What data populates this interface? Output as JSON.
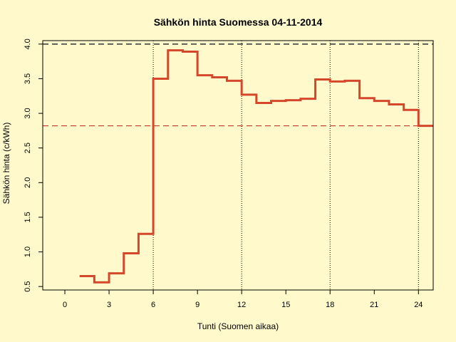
{
  "chart_data": {
    "type": "line",
    "style": "step",
    "title": "Sähkön hinta Suomessa 04-11-2014",
    "xlabel": "Tunti (Suomen aikaa)",
    "ylabel": "Sähkön hinta (c/kWh)",
    "xlim": [
      -1.5,
      25
    ],
    "ylim": [
      0.45,
      4.05
    ],
    "xticks": [
      0,
      3,
      6,
      9,
      12,
      15,
      18,
      21,
      24
    ],
    "yticks": [
      0.5,
      1.0,
      1.5,
      2.0,
      2.5,
      3.0,
      3.5,
      4.0
    ],
    "ytick_labels": [
      "0.5",
      "1.0",
      "1.5",
      "2.0",
      "2.5",
      "3.0",
      "3.5",
      "4.0"
    ],
    "vertical_gridlines_x": [
      6,
      12,
      18,
      24
    ],
    "reference_lines": [
      {
        "y": 4.0,
        "color": "#333333"
      },
      {
        "y": 2.82,
        "color": "#c0392b"
      }
    ],
    "series": [
      {
        "color": "#d4472a",
        "x": [
          1,
          2,
          3,
          4,
          5,
          6,
          7,
          8,
          9,
          10,
          11,
          12,
          13,
          14,
          15,
          16,
          17,
          18,
          19,
          20,
          21,
          22,
          23,
          24,
          25
        ],
        "y": [
          0.65,
          0.56,
          0.69,
          0.98,
          1.26,
          3.5,
          3.91,
          3.89,
          3.55,
          3.52,
          3.47,
          3.27,
          3.15,
          3.18,
          3.19,
          3.21,
          3.49,
          3.46,
          3.47,
          3.22,
          3.18,
          3.13,
          3.05,
          2.82,
          2.82
        ]
      }
    ]
  }
}
